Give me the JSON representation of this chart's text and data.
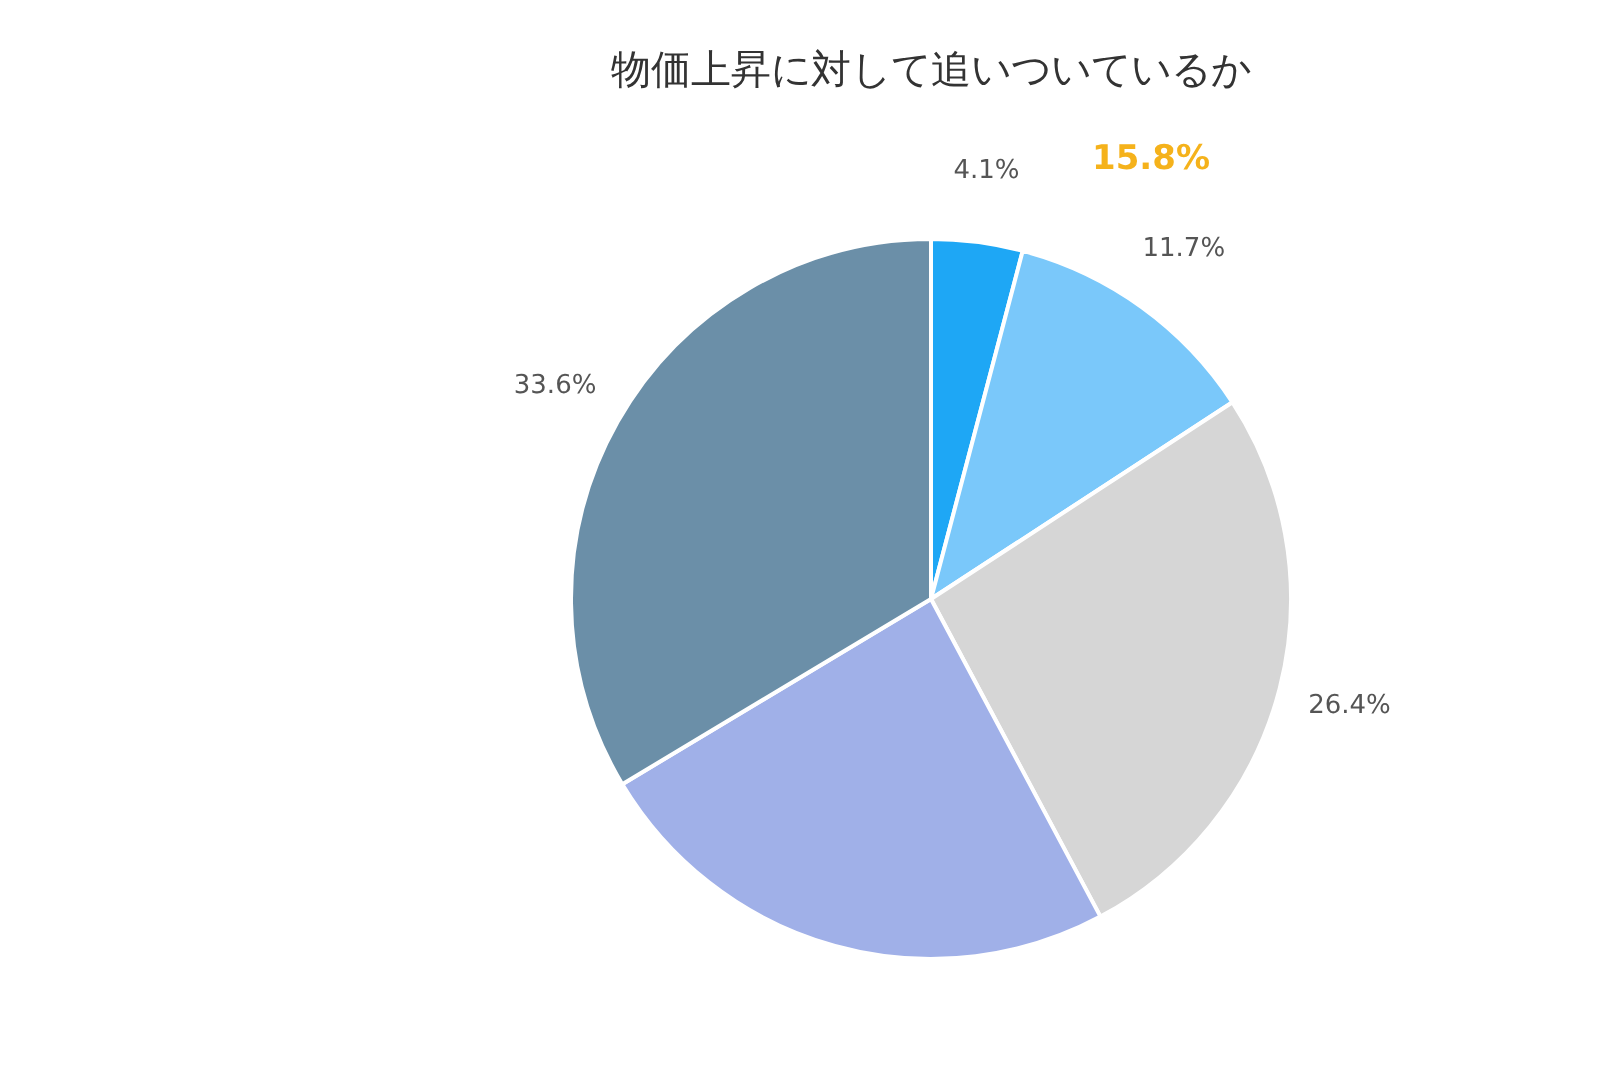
{
  "chart_data": {
    "type": "pie",
    "title": "物価上昇に対して追いついているか",
    "categories": [
      null,
      null,
      null,
      null,
      null
    ],
    "values": [
      4.1,
      11.7,
      26.4,
      24.2,
      33.6
    ],
    "colors": [
      "#1ea7f5",
      "#7ac8fa",
      "#d6d6d6",
      "#a0b0e8",
      "#6b8fa8"
    ],
    "value_labels": [
      "4.1%",
      "11.7%",
      "26.4%",
      null,
      "33.6%"
    ],
    "annotations": [
      "15.8%"
    ]
  }
}
